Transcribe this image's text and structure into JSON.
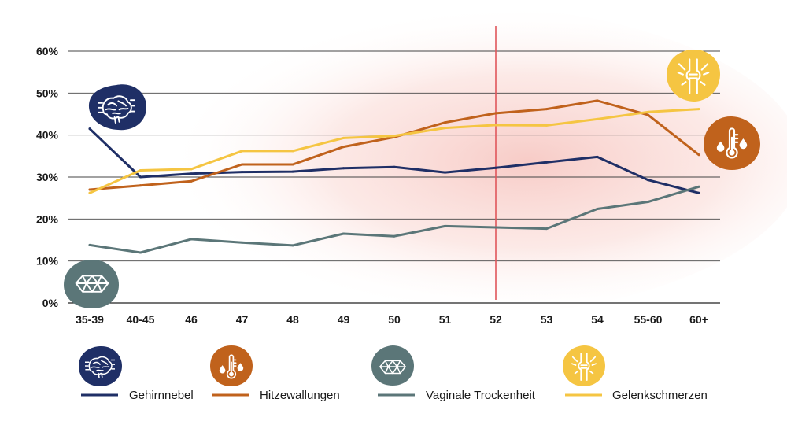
{
  "chart_data": {
    "type": "line",
    "title": "",
    "xlabel": "",
    "ylabel": "",
    "categories": [
      "35-39",
      "40-45",
      "46",
      "47",
      "48",
      "49",
      "50",
      "51",
      "52",
      "53",
      "54",
      "55-60",
      "60+"
    ],
    "ylim": [
      0,
      60
    ],
    "yticks": [
      0,
      10,
      20,
      30,
      40,
      50,
      60
    ],
    "ytick_labels": [
      "0%",
      "10%",
      "20%",
      "30%",
      "40%",
      "50%",
      "60%"
    ],
    "grid": true,
    "reference_line": {
      "category": "52",
      "color": "#e0565b"
    },
    "series": [
      {
        "key": "brain",
        "name": "Gehirnnebel",
        "color": "#1f2f66",
        "icon": "brain-icon",
        "values": [
          41.5,
          30,
          30.8,
          31.2,
          31.3,
          32.1,
          32.4,
          31.1,
          32.2,
          33.5,
          34.8,
          29.3,
          26.2
        ]
      },
      {
        "key": "hot",
        "name": "Hitzewallungen",
        "color": "#c0621c",
        "icon": "thermometer-icon",
        "values": [
          27,
          28,
          29,
          33,
          33,
          37.2,
          39.5,
          43,
          45.2,
          46.2,
          48.2,
          44.8,
          35.3
        ]
      },
      {
        "key": "dry",
        "name": "Vaginale Trockenheit",
        "color": "#5b7678",
        "icon": "crystal-icon",
        "values": [
          13.8,
          12,
          15.2,
          14.4,
          13.7,
          16.5,
          15.9,
          18.3,
          18,
          17.7,
          22.4,
          24.1,
          27.7
        ]
      },
      {
        "key": "joint",
        "name": "Gelenkschmerzen",
        "color": "#f5c542",
        "icon": "joint-icon",
        "values": [
          26.2,
          31.6,
          31.9,
          36.2,
          36.2,
          39.3,
          39.8,
          41.7,
          42.4,
          42.3,
          43.8,
          45.5,
          46.2
        ]
      }
    ]
  }
}
